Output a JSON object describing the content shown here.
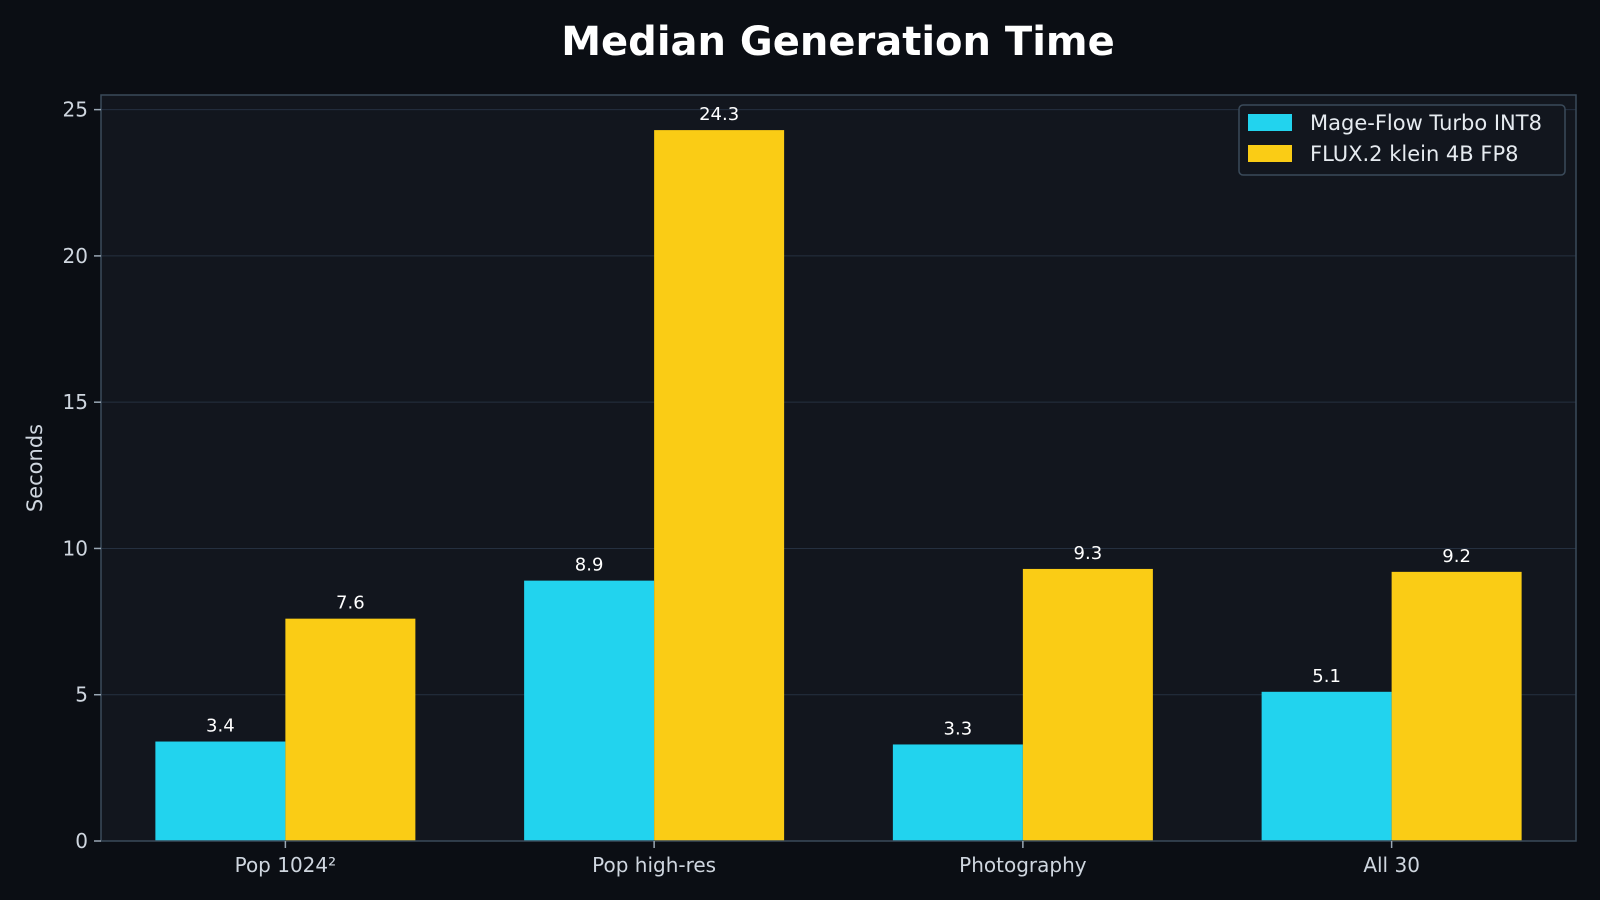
{
  "chart_data": {
    "type": "bar",
    "title": "Median Generation Time",
    "xlabel": "",
    "ylabel": "Seconds",
    "categories": [
      "Pop 1024²",
      "Pop high-res",
      "Photography",
      "All 30"
    ],
    "series": [
      {
        "name": "Mage-Flow Turbo INT8",
        "color": "#22d3ee",
        "values": [
          3.4,
          8.9,
          3.3,
          5.1
        ],
        "labels": [
          "3.4",
          "8.9",
          "3.3",
          "5.1"
        ]
      },
      {
        "name": "FLUX.2 klein 4B FP8",
        "color": "#facc15",
        "values": [
          7.6,
          24.3,
          9.3,
          9.2
        ],
        "labels": [
          "7.6",
          "24.3",
          "9.3",
          "9.2"
        ]
      }
    ],
    "ylim": [
      0,
      25.5
    ],
    "yticks": [
      0,
      5,
      10,
      15,
      20,
      25
    ],
    "grid": true,
    "legend_position": "top-right",
    "colors": {
      "background": "#0b0e14",
      "plot_background": "#12161e",
      "grid": "#253040",
      "axis": "#3a4a5a"
    }
  }
}
